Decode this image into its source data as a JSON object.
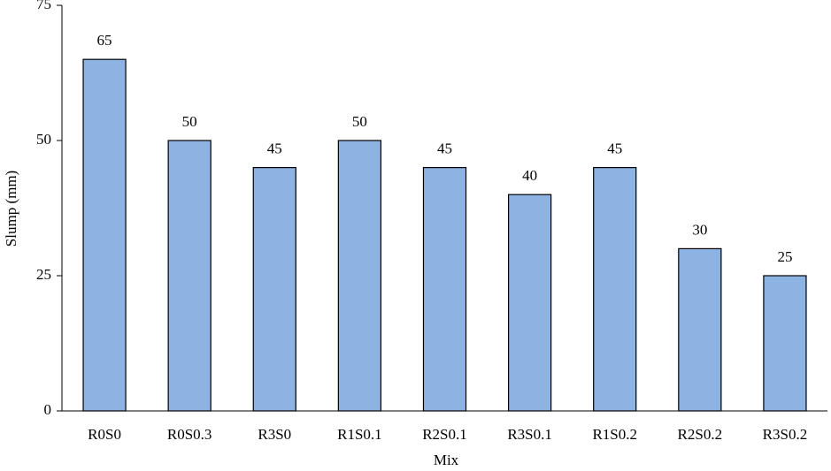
{
  "chart_data": {
    "type": "bar",
    "x_label": "Mix",
    "y_label": "Slump (mm)",
    "categories": [
      "R0S0",
      "R0S0.3",
      "R3S0",
      "R1S0.1",
      "R2S0.1",
      "R3S0.1",
      "R1S0.2",
      "R2S0.2",
      "R3S0.2"
    ],
    "values": [
      65,
      50,
      45,
      50,
      45,
      40,
      45,
      30,
      25
    ],
    "color": "#8db3e2",
    "ylim": [
      0,
      75
    ],
    "yticks": [
      0,
      25,
      50,
      75
    ],
    "grid": false,
    "data_labels": true
  }
}
